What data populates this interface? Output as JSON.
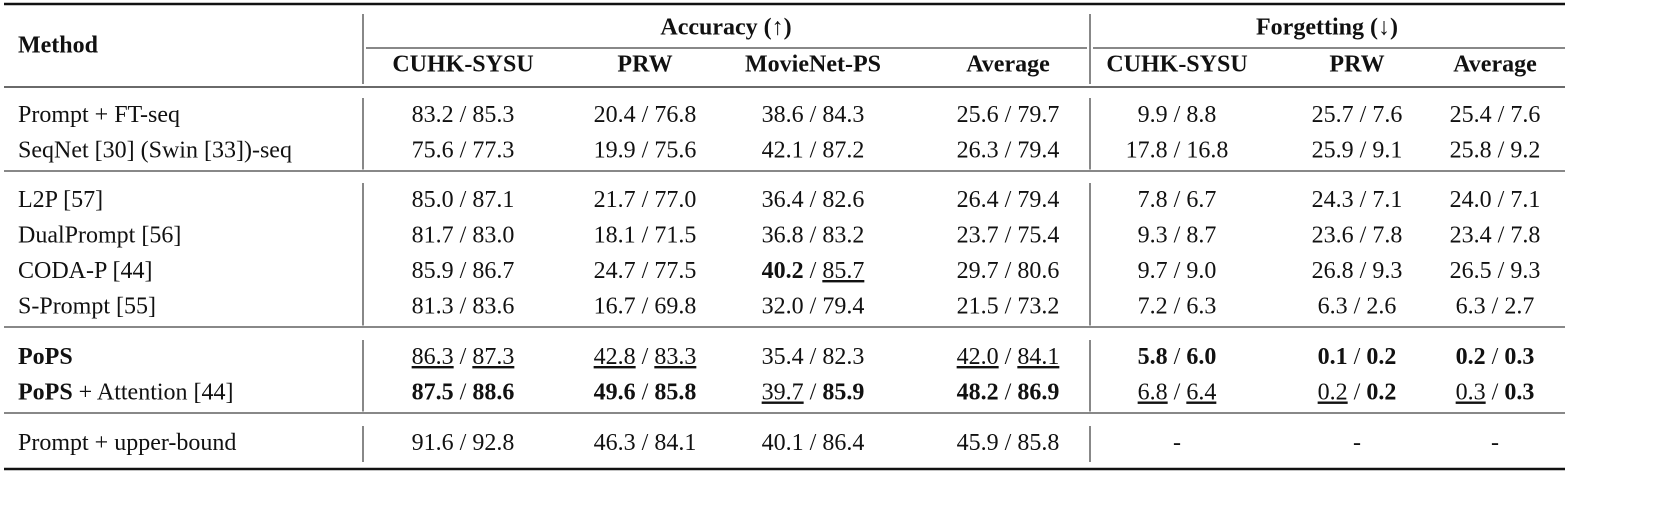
{
  "header": {
    "method": "Method",
    "groups": [
      {
        "title": "Accuracy (↑)",
        "columns": [
          "CUHK-SYSU",
          "PRW",
          "MovieNet-PS",
          "Average"
        ]
      },
      {
        "title": "Forgetting (↓)",
        "columns": [
          "CUHK-SYSU",
          "PRW",
          "Average"
        ]
      }
    ]
  },
  "table": {
    "separator": " / ",
    "sections": [
      [
        {
          "method": [
            "Prompt + FT-seq"
          ],
          "cells": [
            [
              "83.2",
              "85.3"
            ],
            [
              "20.4",
              "76.8"
            ],
            [
              "38.6",
              "84.3"
            ],
            [
              "25.6",
              "79.7"
            ],
            [
              "9.9",
              "8.8"
            ],
            [
              "25.7",
              "7.6"
            ],
            [
              "25.4",
              "7.6"
            ]
          ]
        },
        {
          "method": [
            "SeqNet [30] (Swin [33])-seq"
          ],
          "cells": [
            [
              "75.6",
              "77.3"
            ],
            [
              "19.9",
              "75.6"
            ],
            [
              "42.1",
              "87.2"
            ],
            [
              "26.3",
              "79.4"
            ],
            [
              "17.8",
              "16.8"
            ],
            [
              "25.9",
              "9.1"
            ],
            [
              "25.8",
              "9.2"
            ]
          ]
        }
      ],
      [
        {
          "method": [
            "L2P [57]"
          ],
          "cells": [
            [
              "85.0",
              "87.1"
            ],
            [
              "21.7",
              "77.0"
            ],
            [
              "36.4",
              "82.6"
            ],
            [
              "26.4",
              "79.4"
            ],
            [
              "7.8",
              "6.7"
            ],
            [
              "24.3",
              "7.1"
            ],
            [
              "24.0",
              "7.1"
            ]
          ]
        },
        {
          "method": [
            "DualPrompt [56]"
          ],
          "cells": [
            [
              "81.7",
              "83.0"
            ],
            [
              "18.1",
              "71.5"
            ],
            [
              "36.8",
              "83.2"
            ],
            [
              "23.7",
              "75.4"
            ],
            [
              "9.3",
              "8.7"
            ],
            [
              "23.6",
              "7.8"
            ],
            [
              "23.4",
              "7.8"
            ]
          ]
        },
        {
          "method": [
            "CODA-P [44]"
          ],
          "cells": [
            [
              "85.9",
              "86.7"
            ],
            [
              "24.7",
              "77.5"
            ],
            [
              "40.2",
              "85.7"
            ],
            [
              "29.7",
              "80.6"
            ],
            [
              "9.7",
              "9.0"
            ],
            [
              "26.8",
              "9.3"
            ],
            [
              "26.5",
              "9.3"
            ]
          ],
          "bold": [
            "2.0"
          ],
          "underline": [
            "2.1"
          ]
        },
        {
          "method": [
            "S-Prompt [55]"
          ],
          "cells": [
            [
              "81.3",
              "83.6"
            ],
            [
              "16.7",
              "69.8"
            ],
            [
              "32.0",
              "79.4"
            ],
            [
              "21.5",
              "73.2"
            ],
            [
              "7.2",
              "6.3"
            ],
            [
              "6.3",
              "2.6"
            ],
            [
              "6.3",
              "2.7"
            ]
          ]
        }
      ],
      [
        {
          "method": [
            "PoPS"
          ],
          "method_bold": [
            0
          ],
          "cells": [
            [
              "86.3",
              "87.3"
            ],
            [
              "42.8",
              "83.3"
            ],
            [
              "35.4",
              "82.3"
            ],
            [
              "42.0",
              "84.1"
            ],
            [
              "5.8",
              "6.0"
            ],
            [
              "0.1",
              "0.2"
            ],
            [
              "0.2",
              "0.3"
            ]
          ],
          "bold": [
            "4.0",
            "4.1",
            "5.0",
            "5.1",
            "6.0",
            "6.1"
          ],
          "underline": [
            "0.0",
            "0.1",
            "1.0",
            "1.1",
            "3.0",
            "3.1"
          ]
        },
        {
          "method": [
            "PoPS",
            " + Attention [44]"
          ],
          "method_bold": [
            0
          ],
          "cells": [
            [
              "87.5",
              "88.6"
            ],
            [
              "49.6",
              "85.8"
            ],
            [
              "39.7",
              "85.9"
            ],
            [
              "48.2",
              "86.9"
            ],
            [
              "6.8",
              "6.4"
            ],
            [
              "0.2",
              "0.2"
            ],
            [
              "0.3",
              "0.3"
            ]
          ],
          "bold": [
            "0.0",
            "0.1",
            "1.0",
            "1.1",
            "2.1",
            "3.0",
            "3.1",
            "5.1",
            "6.1"
          ],
          "underline": [
            "2.0",
            "4.0",
            "4.1",
            "5.0",
            "6.0"
          ]
        }
      ],
      [
        {
          "method": [
            "Prompt + upper-bound"
          ],
          "cells": [
            [
              "91.6",
              "92.8"
            ],
            [
              "46.3",
              "84.1"
            ],
            [
              "40.1",
              "86.4"
            ],
            [
              "45.9",
              "85.8"
            ],
            [
              "-"
            ],
            [
              "-"
            ],
            [
              "-"
            ]
          ]
        }
      ]
    ]
  }
}
